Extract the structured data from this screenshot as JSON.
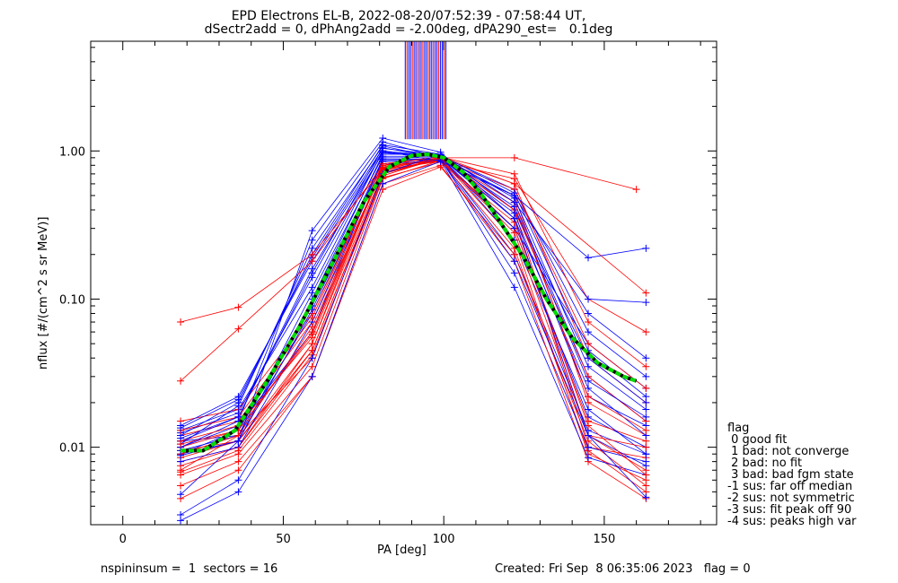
{
  "title_line1": "EPD Electrons EL-B, 2022-08-20/07:52:39 - 07:58:44 UT,",
  "title_line2": "dSectr2add = 0, dPhAng2add = -2.00deg, dPA290_est=   0.1deg",
  "footer_left": "nspininsum =  1  sectors = 16",
  "footer_right": "Created: Fri Sep  8 06:35:06 2023   flag = 0",
  "legend": {
    "title": "flag",
    "items": [
      " 0 good fit",
      " 1 bad: not converge",
      " 2 bad: no fit",
      " 3 bad: bad fgm state",
      "-1 sus: far off median",
      "-2 sus: not symmetric",
      "-3 sus: fit peak off 90",
      "-4 sus: peaks high var"
    ]
  },
  "colors": {
    "series_a": "#ff0000",
    "series_b": "#0000ff",
    "fit_curve": "#00dd00",
    "fit_shadow": "#000000",
    "axis": "#000000"
  },
  "chart_data": {
    "type": "line",
    "xlabel": "PA [deg]",
    "ylabel": "nflux [#/(cm^2 s sr MeV)]",
    "xlim": [
      -10,
      185
    ],
    "ylim": [
      0.003,
      5.5
    ],
    "yscale": "log",
    "xticks": [
      0,
      50,
      100,
      150
    ],
    "xtick_labels": [
      "0",
      "50",
      "100",
      "150"
    ],
    "yticks": [
      0.01,
      0.1,
      1.0
    ],
    "ytick_labels": [
      "0.01",
      "0.10",
      "1.00"
    ],
    "x_sectors": [
      18,
      36,
      59,
      81,
      99,
      122,
      145,
      163
    ],
    "sweeps": [
      {
        "color": "red",
        "values": [
          0.0095,
          0.011,
          0.045,
          0.7,
          0.9,
          0.4,
          0.01,
          0.0085
        ]
      },
      {
        "color": "blue",
        "values": [
          0.011,
          0.012,
          0.08,
          0.85,
          0.88,
          0.2,
          0.013,
          0.009
        ]
      },
      {
        "color": "red",
        "values": [
          0.008,
          0.01,
          0.05,
          0.8,
          0.92,
          0.35,
          0.012,
          0.007
        ]
      },
      {
        "color": "blue",
        "values": [
          0.01,
          0.014,
          0.06,
          0.9,
          0.9,
          0.3,
          0.016,
          0.01
        ]
      },
      {
        "color": "red",
        "values": [
          0.012,
          0.015,
          0.07,
          0.75,
          0.85,
          0.5,
          0.02,
          0.012
        ]
      },
      {
        "color": "blue",
        "values": [
          0.009,
          0.011,
          0.1,
          0.95,
          0.95,
          0.45,
          0.03,
          0.015
        ]
      },
      {
        "color": "red",
        "values": [
          0.007,
          0.012,
          0.04,
          0.7,
          0.88,
          0.25,
          0.009,
          0.006
        ]
      },
      {
        "color": "blue",
        "values": [
          0.013,
          0.018,
          0.12,
          1.0,
          0.92,
          0.55,
          0.06,
          0.03
        ]
      },
      {
        "color": "red",
        "values": [
          0.0065,
          0.009,
          0.035,
          0.65,
          0.86,
          0.22,
          0.0095,
          0.005
        ]
      },
      {
        "color": "blue",
        "values": [
          0.011,
          0.016,
          0.15,
          1.05,
          0.9,
          0.5,
          0.08,
          0.04
        ]
      },
      {
        "color": "red",
        "values": [
          0.01,
          0.013,
          0.06,
          0.78,
          0.9,
          0.6,
          0.04,
          0.02
        ]
      },
      {
        "color": "blue",
        "values": [
          0.012,
          0.02,
          0.2,
          1.1,
          0.95,
          0.4,
          0.04,
          0.02
        ]
      },
      {
        "color": "red",
        "values": [
          0.0085,
          0.011,
          0.05,
          0.72,
          0.88,
          0.3,
          0.015,
          0.011
        ]
      },
      {
        "color": "blue",
        "values": [
          0.009,
          0.013,
          0.09,
          0.88,
          0.88,
          0.15,
          0.01,
          0.008
        ]
      },
      {
        "color": "red",
        "values": [
          0.0055,
          0.008,
          0.03,
          0.6,
          0.8,
          0.18,
          0.008,
          0.0045
        ]
      },
      {
        "color": "blue",
        "values": [
          0.01,
          0.015,
          0.25,
          1.15,
          0.9,
          0.35,
          0.025,
          0.012
        ]
      },
      {
        "color": "red",
        "values": [
          0.015,
          0.018,
          0.08,
          0.8,
          0.85,
          0.65,
          0.1,
          0.06
        ]
      },
      {
        "color": "blue",
        "values": [
          0.014,
          0.022,
          0.18,
          1.0,
          0.85,
          0.3,
          0.05,
          0.025
        ]
      },
      {
        "color": "red",
        "values": [
          0.0075,
          0.01,
          0.045,
          0.68,
          0.9,
          0.4,
          0.03,
          0.015
        ]
      },
      {
        "color": "blue",
        "values": [
          0.0095,
          0.012,
          0.11,
          0.92,
          0.92,
          0.25,
          0.018,
          0.009
        ]
      },
      {
        "color": "red",
        "values": [
          0.011,
          0.014,
          0.055,
          0.76,
          0.88,
          0.28,
          0.012,
          0.01
        ]
      },
      {
        "color": "blue",
        "values": [
          0.008,
          0.01,
          0.07,
          0.82,
          0.86,
          0.12,
          0.0085,
          0.0065
        ]
      },
      {
        "color": "red",
        "values": [
          0.009,
          0.012,
          0.065,
          0.74,
          0.87,
          0.55,
          0.05,
          0.025
        ]
      },
      {
        "color": "blue",
        "values": [
          0.0125,
          0.017,
          0.14,
          0.98,
          0.93,
          0.48,
          0.035,
          0.018
        ]
      },
      {
        "color": "red",
        "values": [
          0.0045,
          0.007,
          0.03,
          0.55,
          0.78,
          0.2,
          0.011,
          0.0055
        ]
      },
      {
        "color": "blue",
        "values": [
          0.0105,
          0.019,
          0.22,
          1.08,
          0.89,
          0.38,
          0.022,
          0.014
        ]
      },
      {
        "color": "red",
        "values": [
          0.013,
          0.016,
          0.075,
          0.82,
          0.91,
          0.7,
          0.07,
          0.035
        ]
      },
      {
        "color": "blue",
        "values": [
          0.0088,
          0.011,
          0.085,
          0.86,
          0.87,
          0.18,
          0.012,
          0.0075
        ]
      },
      {
        "color": "red",
        "values": [
          0.0068,
          0.0095,
          0.042,
          0.66,
          0.84,
          0.33,
          0.014,
          0.0065
        ]
      },
      {
        "color": "blue",
        "values": [
          0.0115,
          0.016,
          0.16,
          0.97,
          0.91,
          0.42,
          0.028,
          0.016
        ]
      },
      {
        "color": "red",
        "values": [
          0.0105,
          0.013,
          0.058,
          0.77,
          0.89,
          0.45,
          0.022,
          0.013
        ]
      },
      {
        "color": "blue",
        "values": [
          0.0135,
          0.021,
          0.19,
          1.04,
          0.94,
          0.52,
          0.045,
          0.022
        ]
      }
    ],
    "outlier_sweeps": [
      {
        "color": "red",
        "x": [
          18,
          36,
          59,
          81,
          99,
          122,
          160
        ],
        "values": [
          0.07,
          0.088,
          0.2,
          0.75,
          0.9,
          0.9,
          0.55
        ]
      },
      {
        "color": "red",
        "x": [
          18,
          36,
          59,
          81,
          99,
          122,
          163
        ],
        "values": [
          0.028,
          0.063,
          0.18,
          0.8,
          0.92,
          0.6,
          0.11
        ]
      },
      {
        "color": "blue",
        "x": [
          18,
          36,
          59,
          81,
          99,
          122,
          145,
          163
        ],
        "values": [
          0.0032,
          0.005,
          0.03,
          0.6,
          0.85,
          0.5,
          0.19,
          0.22
        ]
      },
      {
        "color": "blue",
        "x": [
          18,
          36,
          59,
          81,
          99,
          122,
          145,
          163
        ],
        "values": [
          0.0035,
          0.006,
          0.04,
          0.7,
          0.95,
          0.45,
          0.1,
          0.095
        ]
      },
      {
        "color": "blue",
        "x": [
          18,
          36,
          59,
          81,
          99,
          122,
          145,
          163
        ],
        "values": [
          0.0048,
          0.011,
          0.29,
          1.22,
          0.98,
          0.35,
          0.012,
          0.0046
        ]
      }
    ],
    "fit_curve": {
      "x": [
        18,
        25,
        35,
        45,
        55,
        65,
        75,
        83,
        90,
        95,
        100,
        106,
        112,
        118,
        125,
        132,
        140,
        148,
        156,
        160
      ],
      "values": [
        0.0095,
        0.0095,
        0.013,
        0.028,
        0.065,
        0.17,
        0.45,
        0.78,
        0.93,
        0.95,
        0.9,
        0.72,
        0.5,
        0.32,
        0.19,
        0.1,
        0.055,
        0.037,
        0.03,
        0.028
      ]
    },
    "spikes_x_range": [
      88,
      101
    ],
    "spikes_y_range": [
      1.2,
      5.5
    ]
  }
}
